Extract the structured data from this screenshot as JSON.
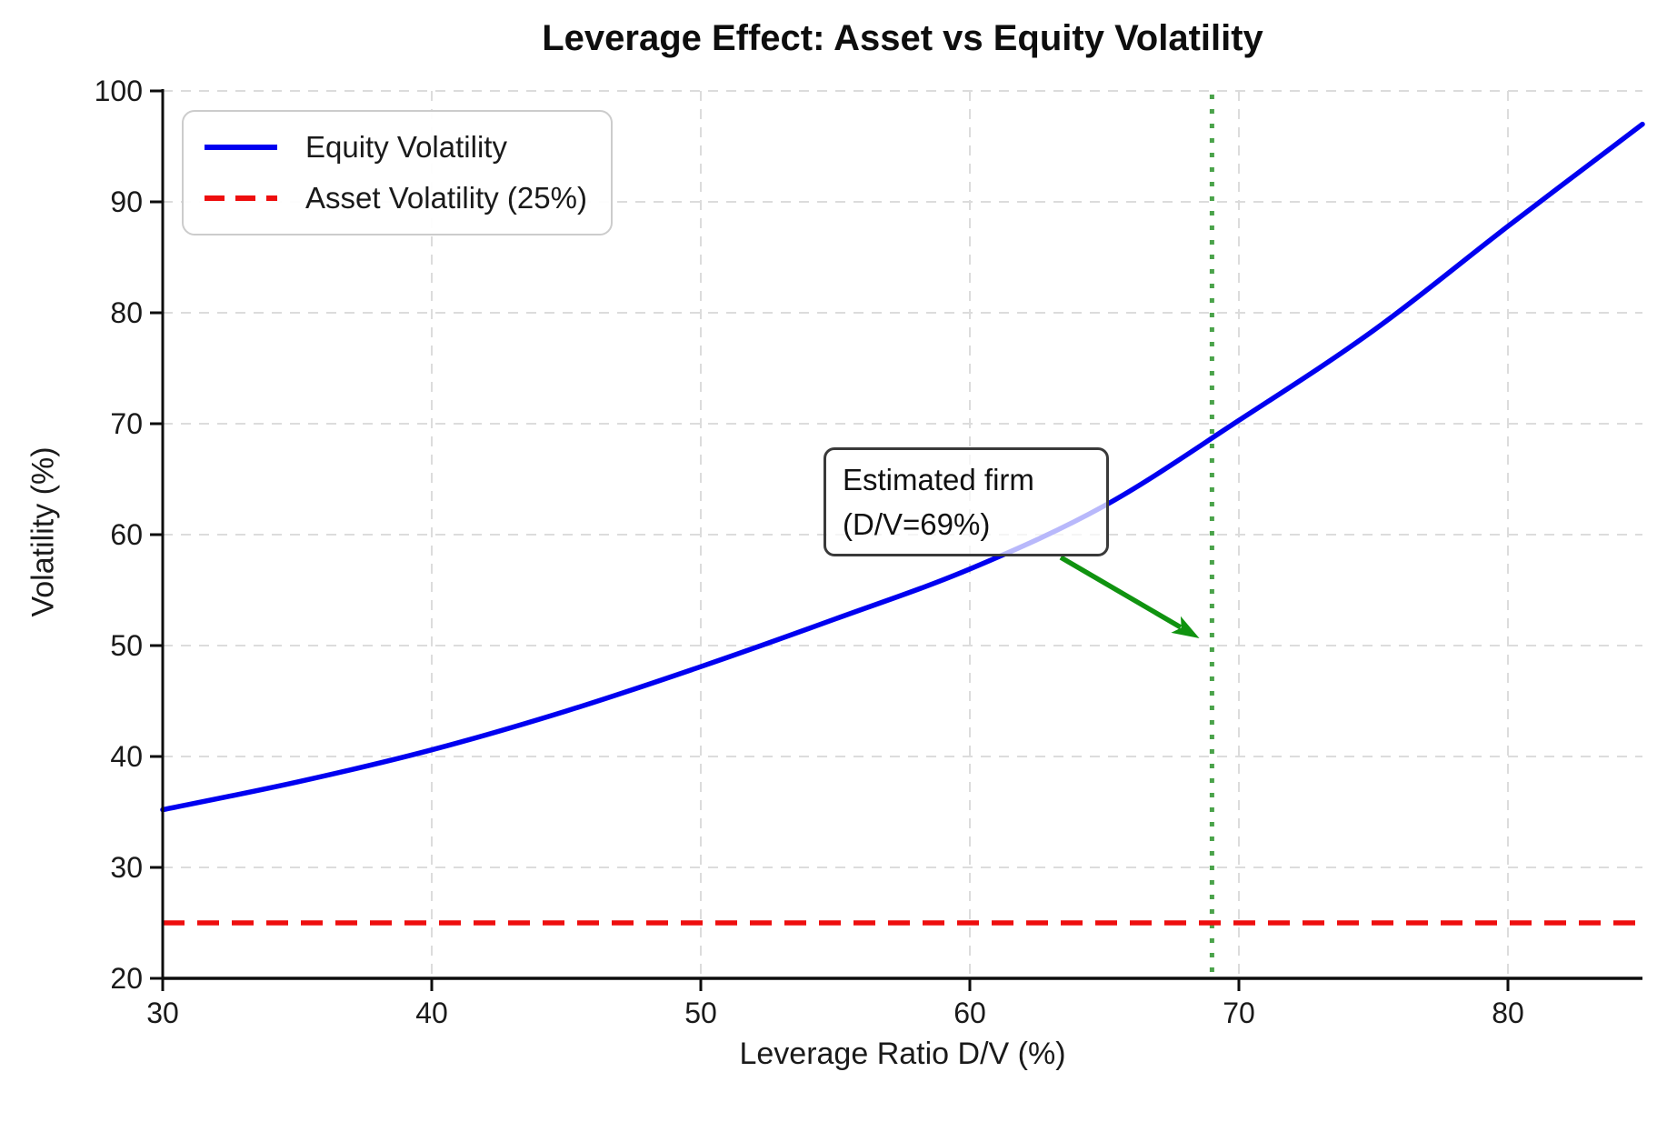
{
  "chart_data": {
    "type": "line",
    "title": "Leverage Effect: Asset vs Equity Volatility",
    "xlabel": "Leverage Ratio D/V (%)",
    "ylabel": "Volatility (%)",
    "xlim": [
      30,
      85
    ],
    "ylim": [
      20,
      100
    ],
    "x_ticks": [
      30,
      40,
      50,
      60,
      70,
      80
    ],
    "y_ticks": [
      20,
      30,
      40,
      50,
      60,
      70,
      80,
      90,
      100
    ],
    "grid": true,
    "grid_color": "#dcdcdc",
    "axis_color": "#0d0d0d",
    "legend_position": "upper-left",
    "series": [
      {
        "name": "Equity Volatility",
        "color": "#0000f0",
        "style": "solid",
        "x": [
          30,
          35,
          40,
          45,
          50,
          55,
          60,
          65,
          70,
          75,
          80,
          85
        ],
        "y": [
          35.2,
          37.7,
          40.6,
          44.1,
          48.1,
          52.4,
          56.9,
          62.6,
          70.3,
          78.4,
          87.8,
          97.0
        ]
      },
      {
        "name": "Asset Volatility (25%)",
        "color": "#ee0e0e",
        "style": "dashed",
        "x": [
          30,
          85
        ],
        "y": [
          25,
          25
        ]
      }
    ],
    "reference_line": {
      "x": 69,
      "color": "#4aa34a",
      "style": "dotted"
    },
    "annotation": {
      "lines": [
        "Estimated firm",
        "(D/V=69%)"
      ],
      "target_xy": [
        69,
        50
      ],
      "arrow_color": "#109310"
    }
  }
}
